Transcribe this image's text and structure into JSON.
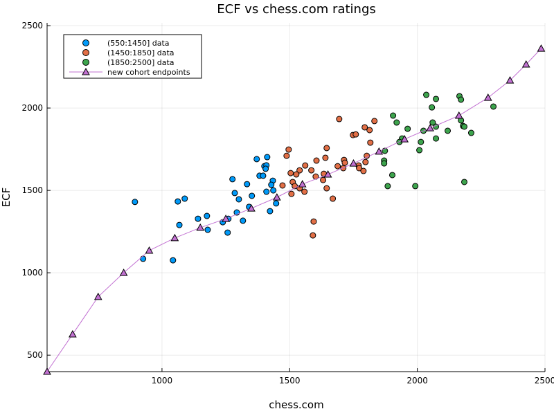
{
  "chart_data": {
    "type": "scatter",
    "title": "ECF vs chess.com ratings",
    "xlabel": "chess.com",
    "ylabel": "ECF",
    "xlim": [
      550,
      2500
    ],
    "ylim": [
      400,
      2517
    ],
    "xticks": [
      1000,
      1500,
      2000,
      2500
    ],
    "yticks": [
      500,
      1000,
      1500,
      2000,
      2500
    ],
    "grid": true,
    "legend_position": "top-left",
    "series": [
      {
        "name": "(550:1450] data",
        "kind": "scatter",
        "color": "#009af9",
        "points": [
          [
            894,
            1430
          ],
          [
            926,
            1085
          ],
          [
            1043,
            1076
          ],
          [
            1062,
            1433
          ],
          [
            1089,
            1450
          ],
          [
            1068,
            1290
          ],
          [
            1141,
            1328
          ],
          [
            1176,
            1345
          ],
          [
            1179,
            1261
          ],
          [
            1238,
            1307
          ],
          [
            1257,
            1244
          ],
          [
            1260,
            1328
          ],
          [
            1276,
            1568
          ],
          [
            1285,
            1484
          ],
          [
            1301,
            1446
          ],
          [
            1293,
            1366
          ],
          [
            1317,
            1316
          ],
          [
            1333,
            1538
          ],
          [
            1352,
            1467
          ],
          [
            1341,
            1400
          ],
          [
            1371,
            1690
          ],
          [
            1412,
            1702
          ],
          [
            1401,
            1647
          ],
          [
            1409,
            1652
          ],
          [
            1406,
            1631
          ],
          [
            1382,
            1589
          ],
          [
            1396,
            1589
          ],
          [
            1409,
            1492
          ],
          [
            1434,
            1559
          ],
          [
            1428,
            1534
          ],
          [
            1436,
            1500
          ],
          [
            1423,
            1374
          ],
          [
            1447,
            1421
          ]
        ]
      },
      {
        "name": "(1450:1850] data",
        "kind": "scatter",
        "color": "#e26f46",
        "points": [
          [
            1694,
            1933
          ],
          [
            1832,
            1921
          ],
          [
            1794,
            1883
          ],
          [
            1813,
            1866
          ],
          [
            1748,
            1836
          ],
          [
            1759,
            1840
          ],
          [
            1816,
            1790
          ],
          [
            1496,
            1748
          ],
          [
            1488,
            1710
          ],
          [
            1645,
            1757
          ],
          [
            1640,
            1698
          ],
          [
            1605,
            1681
          ],
          [
            1561,
            1651
          ],
          [
            1539,
            1622
          ],
          [
            1585,
            1622
          ],
          [
            1504,
            1605
          ],
          [
            1526,
            1597
          ],
          [
            1602,
            1584
          ],
          [
            1631,
            1563
          ],
          [
            1634,
            1601
          ],
          [
            1472,
            1530
          ],
          [
            1512,
            1551
          ],
          [
            1520,
            1526
          ],
          [
            1539,
            1513
          ],
          [
            1558,
            1492
          ],
          [
            1507,
            1479
          ],
          [
            1645,
            1513
          ],
          [
            1669,
            1450
          ],
          [
            1594,
            1311
          ],
          [
            1591,
            1227
          ],
          [
            1688,
            1647
          ],
          [
            1713,
            1685
          ],
          [
            1716,
            1668
          ],
          [
            1710,
            1635
          ],
          [
            1770,
            1651
          ],
          [
            1772,
            1635
          ],
          [
            1789,
            1618
          ],
          [
            1797,
            1672
          ],
          [
            1802,
            1710
          ]
        ]
      },
      {
        "name": "(1850:2500] data",
        "kind": "scatter",
        "color": "#3da44d",
        "points": [
          [
            2035,
            2080
          ],
          [
            2073,
            2055
          ],
          [
            2165,
            2072
          ],
          [
            2171,
            2051
          ],
          [
            2057,
            2004
          ],
          [
            2298,
            2009
          ],
          [
            1905,
            1954
          ],
          [
            1919,
            1912
          ],
          [
            1962,
            1874
          ],
          [
            2060,
            1912
          ],
          [
            2073,
            1887
          ],
          [
            2171,
            1925
          ],
          [
            2179,
            1891
          ],
          [
            2184,
            1887
          ],
          [
            2211,
            1849
          ],
          [
            2119,
            1862
          ],
          [
            2024,
            1862
          ],
          [
            1940,
            1815
          ],
          [
            1930,
            1794
          ],
          [
            2014,
            1794
          ],
          [
            2073,
            1815
          ],
          [
            2008,
            1744
          ],
          [
            1873,
            1740
          ],
          [
            1870,
            1681
          ],
          [
            1870,
            1664
          ],
          [
            1902,
            1593
          ],
          [
            1884,
            1526
          ],
          [
            1992,
            1526
          ],
          [
            2184,
            1551
          ]
        ]
      },
      {
        "name": "new cohort endpoints",
        "kind": "line+triangle",
        "color": "#c271d2",
        "points": [
          [
            550,
            400
          ],
          [
            650,
            627
          ],
          [
            750,
            854
          ],
          [
            850,
            1000
          ],
          [
            950,
            1135
          ],
          [
            1050,
            1211
          ],
          [
            1150,
            1274
          ],
          [
            1250,
            1328
          ],
          [
            1350,
            1391
          ],
          [
            1450,
            1458
          ],
          [
            1550,
            1538
          ],
          [
            1650,
            1597
          ],
          [
            1750,
            1664
          ],
          [
            1850,
            1736
          ],
          [
            1950,
            1811
          ],
          [
            2050,
            1878
          ],
          [
            2163,
            1954
          ],
          [
            2277,
            2063
          ],
          [
            2363,
            2168
          ],
          [
            2426,
            2265
          ],
          [
            2485,
            2361
          ]
        ]
      }
    ]
  }
}
